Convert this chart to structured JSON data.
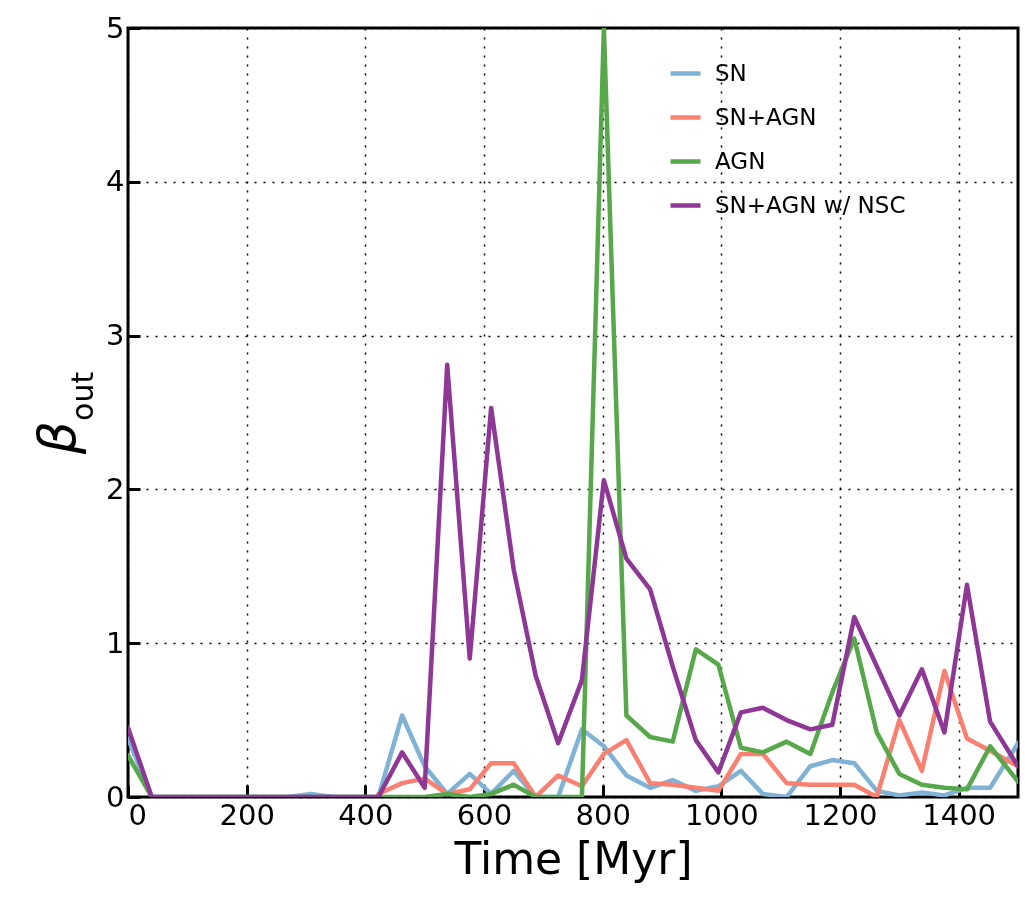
{
  "chart_data": {
    "type": "line",
    "xlabel": "Time [Myr]",
    "ylabel": "β$_{out}$",
    "x": [
      0,
      40,
      80,
      118,
      156,
      194,
      232,
      270,
      308,
      346,
      384,
      422,
      462,
      500,
      538,
      576,
      612,
      650,
      687,
      725,
      765,
      802,
      840,
      880,
      918,
      957,
      995,
      1033,
      1070,
      1110,
      1150,
      1187,
      1224,
      1262,
      1300,
      1338,
      1376,
      1414,
      1453,
      1500
    ],
    "series": [
      {
        "name": "SN",
        "color": "#7fb2d5",
        "values": [
          0.38,
          0,
          0,
          0,
          0,
          0,
          0,
          0,
          0.02,
          0,
          0,
          0,
          0.53,
          0.2,
          0.02,
          0.15,
          0.02,
          0.17,
          0,
          0,
          0.44,
          0.33,
          0.14,
          0.06,
          0.11,
          0.04,
          0.07,
          0.17,
          0.02,
          0,
          0.2,
          0.24,
          0.22,
          0.04,
          0.01,
          0.03,
          0.01,
          0.06,
          0.06,
          0.35
        ]
      },
      {
        "name": "SN+AGN",
        "color": "#fa8072",
        "values": [
          null,
          null,
          null,
          null,
          null,
          null,
          null,
          null,
          null,
          null,
          null,
          0.02,
          0.09,
          0.12,
          0.02,
          0.05,
          0.22,
          0.22,
          0,
          0.14,
          0.07,
          0.28,
          0.37,
          0.09,
          0.08,
          0.06,
          0.04,
          0.28,
          0.28,
          0.09,
          0.08,
          0.08,
          0.08,
          0,
          0.5,
          0.17,
          0.82,
          0.38,
          0.3,
          0.2
        ]
      },
      {
        "name": "AGN",
        "color": "#56a84a",
        "values": [
          0.27,
          0,
          0,
          0,
          0,
          0,
          0,
          0,
          0,
          0,
          0,
          0,
          0,
          0,
          0.02,
          0,
          0.02,
          0.08,
          0,
          0,
          0,
          5,
          0.53,
          0.39,
          0.36,
          0.96,
          0.86,
          0.32,
          0.29,
          0.36,
          0.28,
          0.68,
          1.03,
          0.42,
          0.15,
          0.08,
          0.06,
          0.05,
          0.33,
          0.1
        ]
      },
      {
        "name": "SN+AGN w/ NSC",
        "color": "#8e3796",
        "values": [
          0.45,
          0,
          0,
          0,
          0,
          0,
          0,
          0,
          0,
          0,
          0,
          0,
          0.29,
          0.06,
          2.81,
          0.9,
          2.53,
          1.48,
          0.79,
          0.35,
          0.76,
          2.06,
          1.55,
          1.35,
          0.85,
          0.37,
          0.16,
          0.55,
          0.58,
          0.5,
          0.44,
          0.47,
          1.17,
          0.85,
          0.53,
          0.83,
          0.42,
          1.38,
          0.49,
          0.2
        ]
      }
    ],
    "xlim": [
      0,
      1500
    ],
    "xticks": [
      0,
      200,
      400,
      600,
      800,
      1000,
      1200,
      1400
    ],
    "ylim": [
      0,
      5
    ],
    "yticks": [
      0,
      1,
      2,
      3,
      4,
      5
    ],
    "grid": true,
    "legend": "top right",
    "line_style": "solid"
  }
}
